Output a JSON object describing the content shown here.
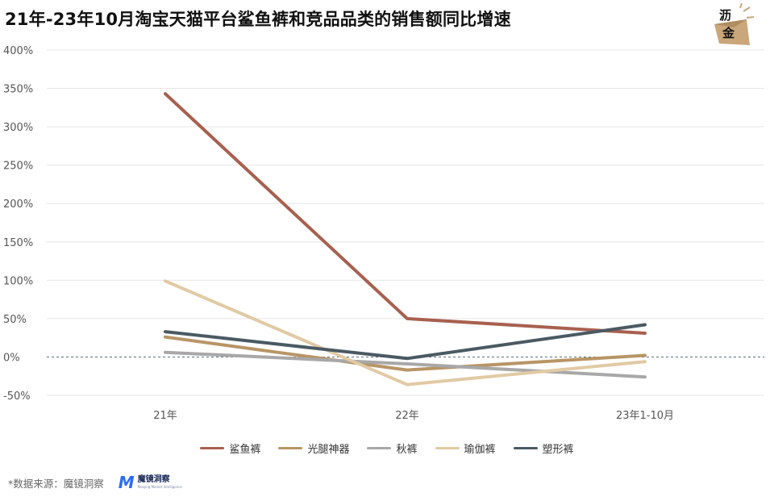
{
  "title": "21年-23年10月淘宝天猫平台鲨鱼裤和竞品品类的销售额同比增速",
  "logo": {
    "line1": "沥",
    "line2": "金"
  },
  "footer": {
    "source": "*数据来源：魔镜洞察",
    "brand_name": "魔镜洞察",
    "brand_mark": "M",
    "brand_sub": "Moojing Market Intelligence"
  },
  "chart_data": {
    "type": "line",
    "title": "21年-23年10月淘宝天猫平台鲨鱼裤和竞品品类的销售额同比增速",
    "xlabel": "",
    "ylabel": "",
    "categories": [
      "21年",
      "22年",
      "23年1-10月"
    ],
    "ylim": [
      -50,
      400
    ],
    "yticks": [
      -50,
      0,
      50,
      100,
      150,
      200,
      250,
      300,
      350,
      400
    ],
    "ytick_labels": [
      "-50%",
      "0%",
      "50%",
      "100%",
      "150%",
      "200%",
      "250%",
      "300%",
      "350%",
      "400%"
    ],
    "grid": true,
    "zero_line": "dashed",
    "legend_position": "bottom",
    "series": [
      {
        "name": "鲨鱼裤",
        "color": "#a8604f",
        "values": [
          343,
          50,
          31
        ]
      },
      {
        "name": "光腿神器",
        "color": "#b89566",
        "values": [
          26,
          -17,
          2
        ]
      },
      {
        "name": "秋裤",
        "color": "#a8a8a8",
        "values": [
          6,
          -9,
          -26
        ]
      },
      {
        "name": "瑜伽裤",
        "color": "#e1caa4",
        "values": [
          99,
          -36,
          -6
        ]
      },
      {
        "name": "塑形裤",
        "color": "#4a5a63",
        "values": [
          33,
          -2,
          42
        ]
      }
    ]
  }
}
